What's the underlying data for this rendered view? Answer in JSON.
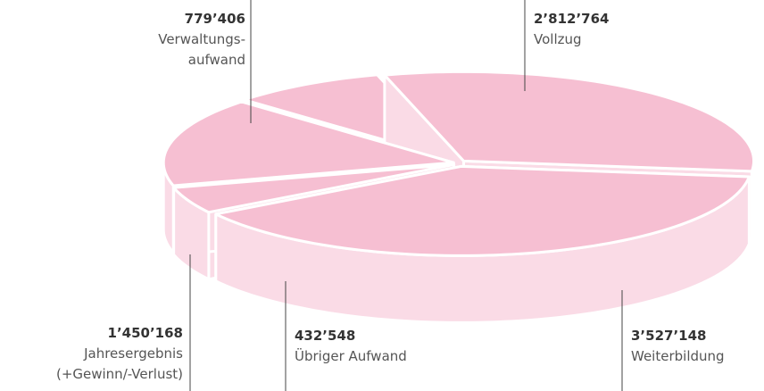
{
  "chart_data": {
    "type": "pie",
    "categories": [
      "Verwaltungs-\naufwand",
      "Vollzug",
      "Weiterbildung",
      "Übriger Aufwand",
      "Jahresergebnis\n(+Gewinn/-Verlust)"
    ],
    "values": [
      779406,
      2812764,
      3527148,
      432548,
      1450168
    ],
    "value_labels": [
      "779’406",
      "2’812’764",
      "3’527’148",
      "432’548",
      "1’450’168"
    ],
    "color": "#f6bfd2",
    "side_color": "#fadbe6"
  }
}
